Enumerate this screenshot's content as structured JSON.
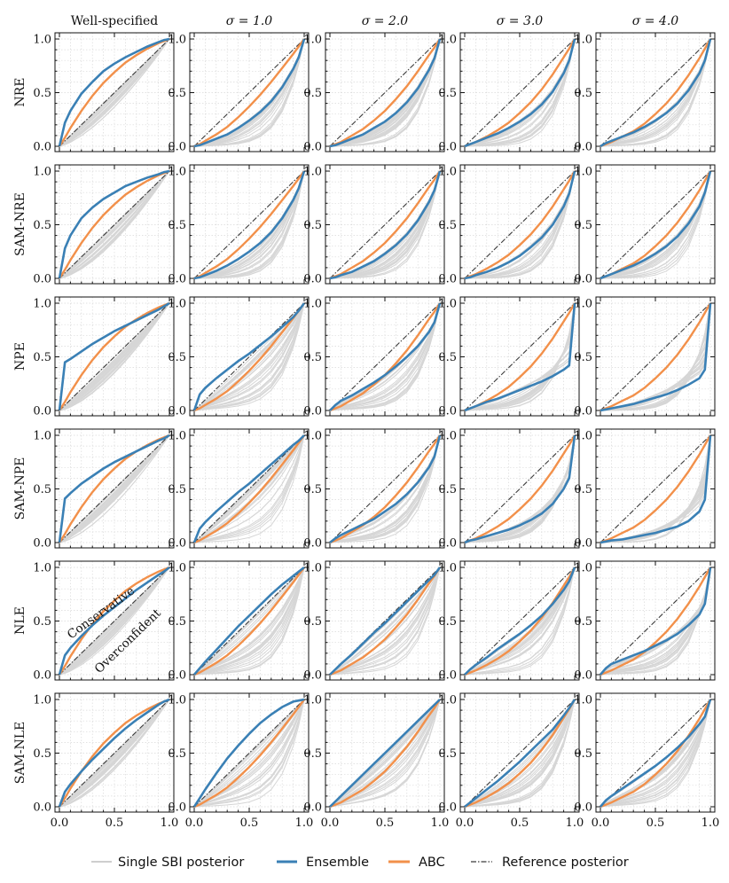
{
  "chart_data": {
    "type": "line",
    "description_free": true,
    "columns": [
      "Well-specified",
      "σ = 1.0",
      "σ = 2.0",
      "σ = 3.0",
      "σ = 4.0"
    ],
    "rows": [
      "NRE",
      "SAM-NRE",
      "NPE",
      "SAM-NPE",
      "NLE",
      "SAM-NLE"
    ],
    "xlim": [
      0,
      1
    ],
    "ylim": [
      0,
      1
    ],
    "xticks": [
      "0.0",
      "0.5",
      "1.0"
    ],
    "yticks": [
      "0.0",
      "0.5",
      "1.0"
    ],
    "grid": true,
    "annotations": {
      "above_diagonal": "Conservative",
      "below_diagonal": "Overconfident"
    },
    "legend": {
      "placement": "bottom",
      "entries": [
        "Single SBI posterior",
        "Ensemble",
        "ABC",
        "Reference posterior"
      ]
    },
    "colors": {
      "single": "#d6d6d6",
      "ensemble": "#3a80b5",
      "abc": "#f2904a",
      "reference": "#3a3a3a",
      "grid": "#d9d9d9"
    },
    "curves": {
      "x": [
        0,
        0.05,
        0.1,
        0.2,
        0.3,
        0.4,
        0.5,
        0.6,
        0.7,
        0.8,
        0.9,
        0.95,
        1.0
      ],
      "abc_by_column": [
        [
          0,
          0.08,
          0.17,
          0.33,
          0.47,
          0.59,
          0.69,
          0.78,
          0.85,
          0.91,
          0.96,
          0.98,
          1.0
        ],
        [
          0,
          0.02,
          0.05,
          0.11,
          0.18,
          0.27,
          0.37,
          0.48,
          0.6,
          0.73,
          0.86,
          0.93,
          1.0
        ],
        [
          0,
          0.02,
          0.04,
          0.1,
          0.16,
          0.24,
          0.33,
          0.44,
          0.56,
          0.7,
          0.85,
          0.92,
          1.0
        ],
        [
          0,
          0.02,
          0.04,
          0.09,
          0.15,
          0.22,
          0.31,
          0.41,
          0.53,
          0.67,
          0.83,
          0.91,
          1.0
        ],
        [
          0,
          0.02,
          0.04,
          0.09,
          0.14,
          0.21,
          0.3,
          0.4,
          0.52,
          0.66,
          0.82,
          0.91,
          1.0
        ]
      ],
      "ensemble": [
        [
          [
            0,
            0.22,
            0.33,
            0.49,
            0.6,
            0.7,
            0.77,
            0.83,
            0.88,
            0.93,
            0.97,
            0.99,
            1.0
          ],
          [
            0,
            0.01,
            0.03,
            0.07,
            0.11,
            0.17,
            0.24,
            0.32,
            0.42,
            0.55,
            0.72,
            0.83,
            1.0
          ],
          [
            0,
            0.01,
            0.03,
            0.07,
            0.11,
            0.17,
            0.23,
            0.31,
            0.41,
            0.54,
            0.71,
            0.82,
            1.0
          ],
          [
            0,
            0.02,
            0.04,
            0.08,
            0.12,
            0.17,
            0.23,
            0.3,
            0.39,
            0.51,
            0.68,
            0.8,
            1.0
          ],
          [
            0,
            0.03,
            0.05,
            0.09,
            0.13,
            0.18,
            0.24,
            0.31,
            0.4,
            0.52,
            0.68,
            0.8,
            1.0
          ]
        ],
        [
          [
            0,
            0.28,
            0.4,
            0.56,
            0.66,
            0.74,
            0.8,
            0.86,
            0.9,
            0.94,
            0.97,
            0.99,
            1.0
          ],
          [
            0,
            0.01,
            0.03,
            0.07,
            0.12,
            0.18,
            0.25,
            0.33,
            0.43,
            0.56,
            0.73,
            0.84,
            1.0
          ],
          [
            0,
            0.01,
            0.03,
            0.06,
            0.11,
            0.16,
            0.23,
            0.31,
            0.41,
            0.54,
            0.71,
            0.82,
            1.0
          ],
          [
            0,
            0.01,
            0.03,
            0.06,
            0.1,
            0.15,
            0.21,
            0.29,
            0.38,
            0.5,
            0.67,
            0.79,
            1.0
          ],
          [
            0,
            0.02,
            0.04,
            0.08,
            0.12,
            0.17,
            0.23,
            0.3,
            0.39,
            0.51,
            0.67,
            0.8,
            1.0
          ]
        ],
        [
          [
            0,
            0.45,
            0.48,
            0.55,
            0.62,
            0.68,
            0.74,
            0.79,
            0.84,
            0.89,
            0.94,
            0.97,
            1.0
          ],
          [
            0,
            0.15,
            0.21,
            0.3,
            0.38,
            0.46,
            0.53,
            0.61,
            0.69,
            0.78,
            0.87,
            0.93,
            1.0
          ],
          [
            0,
            0.05,
            0.09,
            0.14,
            0.2,
            0.26,
            0.33,
            0.41,
            0.5,
            0.6,
            0.73,
            0.82,
            1.0
          ],
          [
            0,
            0.02,
            0.04,
            0.08,
            0.11,
            0.15,
            0.19,
            0.23,
            0.27,
            0.32,
            0.38,
            0.42,
            1.0
          ],
          [
            0,
            0.01,
            0.02,
            0.04,
            0.06,
            0.09,
            0.12,
            0.15,
            0.19,
            0.24,
            0.3,
            0.38,
            1.0
          ]
        ],
        [
          [
            0,
            0.41,
            0.46,
            0.55,
            0.62,
            0.69,
            0.75,
            0.8,
            0.85,
            0.9,
            0.95,
            0.97,
            1.0
          ],
          [
            0,
            0.13,
            0.19,
            0.29,
            0.38,
            0.47,
            0.55,
            0.64,
            0.73,
            0.82,
            0.91,
            0.95,
            1.0
          ],
          [
            0,
            0.04,
            0.07,
            0.12,
            0.17,
            0.22,
            0.29,
            0.36,
            0.45,
            0.56,
            0.7,
            0.8,
            1.0
          ],
          [
            0,
            0.02,
            0.03,
            0.06,
            0.09,
            0.12,
            0.16,
            0.21,
            0.27,
            0.36,
            0.5,
            0.6,
            1.0
          ],
          [
            0,
            0.01,
            0.02,
            0.03,
            0.05,
            0.07,
            0.09,
            0.12,
            0.15,
            0.2,
            0.29,
            0.4,
            1.0
          ]
        ],
        [
          [
            0,
            0.18,
            0.25,
            0.36,
            0.46,
            0.55,
            0.63,
            0.71,
            0.79,
            0.86,
            0.93,
            0.96,
            1.0
          ],
          [
            0,
            0.06,
            0.12,
            0.23,
            0.34,
            0.45,
            0.55,
            0.65,
            0.75,
            0.84,
            0.92,
            0.96,
            1.0
          ],
          [
            0,
            0.05,
            0.1,
            0.19,
            0.29,
            0.39,
            0.48,
            0.58,
            0.68,
            0.78,
            0.88,
            0.93,
            1.0
          ],
          [
            0,
            0.05,
            0.09,
            0.16,
            0.24,
            0.31,
            0.38,
            0.46,
            0.55,
            0.66,
            0.79,
            0.87,
            1.0
          ],
          [
            0,
            0.06,
            0.1,
            0.14,
            0.18,
            0.22,
            0.27,
            0.32,
            0.38,
            0.46,
            0.56,
            0.66,
            1.0
          ]
        ],
        [
          [
            0,
            0.14,
            0.21,
            0.33,
            0.44,
            0.54,
            0.64,
            0.73,
            0.81,
            0.88,
            0.95,
            0.98,
            1.0
          ],
          [
            0,
            0.08,
            0.16,
            0.31,
            0.45,
            0.57,
            0.68,
            0.78,
            0.86,
            0.93,
            0.98,
            0.99,
            1.0
          ],
          [
            0,
            0.05,
            0.1,
            0.2,
            0.3,
            0.4,
            0.5,
            0.6,
            0.7,
            0.8,
            0.9,
            0.95,
            1.0
          ],
          [
            0,
            0.04,
            0.08,
            0.16,
            0.24,
            0.33,
            0.42,
            0.52,
            0.62,
            0.72,
            0.85,
            0.92,
            1.0
          ],
          [
            0,
            0.06,
            0.1,
            0.17,
            0.24,
            0.31,
            0.38,
            0.46,
            0.55,
            0.65,
            0.77,
            0.84,
            1.0
          ]
        ]
      ]
    }
  }
}
